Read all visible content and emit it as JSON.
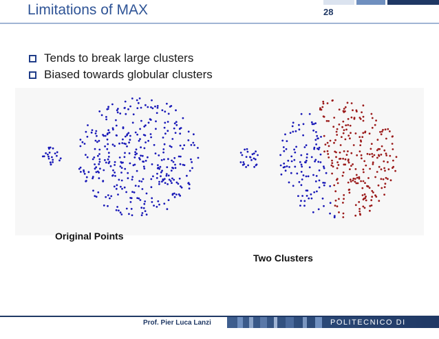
{
  "slide": {
    "title": "Limitations of MAX",
    "number": "28",
    "bullets": [
      "Tends to break large clusters",
      "Biased towards globular clusters"
    ]
  },
  "figures": {
    "left_caption": "Original Points",
    "right_caption": "Two Clusters"
  },
  "colors": {
    "title": "#2f5496",
    "accent": "#1f3864",
    "points_original": "#1a1ab8",
    "cluster_blue": "#1a1ab8",
    "cluster_red": "#9b1b1b"
  },
  "footer": {
    "author": "Prof. Pier Luca Lanzi",
    "institution": "POLITECNICO DI MILANO"
  }
}
